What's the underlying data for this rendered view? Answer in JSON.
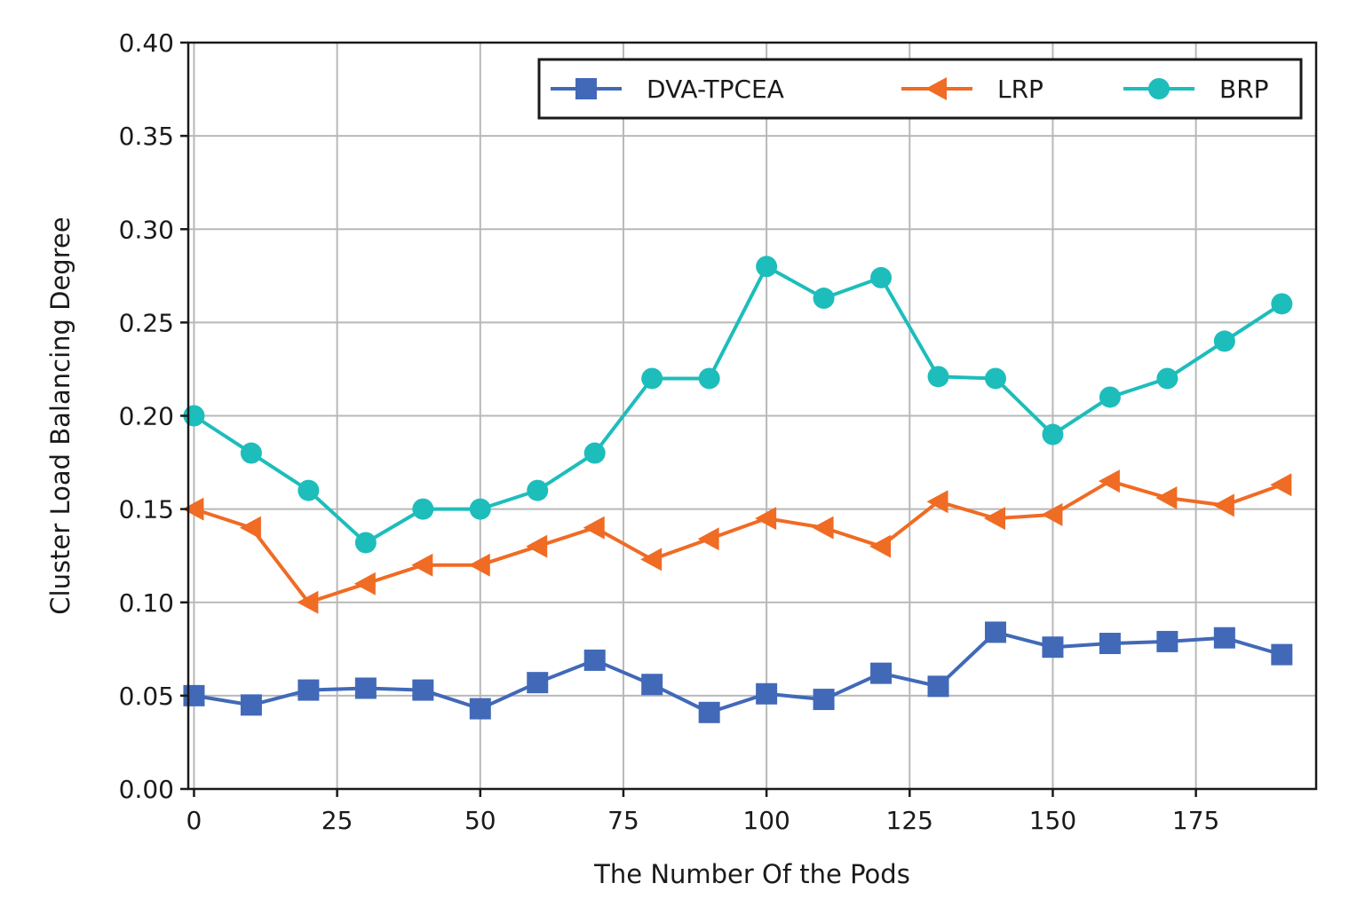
{
  "chart_data": {
    "type": "line",
    "title": "",
    "xlabel": "The Number Of the Pods",
    "ylabel": "Cluster Load Balancing Degree",
    "xlim": [
      -1,
      196
    ],
    "ylim": [
      0.0,
      0.4
    ],
    "xticks": [
      0,
      25,
      50,
      75,
      100,
      125,
      150,
      175
    ],
    "xtick_labels": [
      "0",
      "25",
      "50",
      "75",
      "100",
      "125",
      "150",
      "175"
    ],
    "yticks": [
      0.0,
      0.05,
      0.1,
      0.15,
      0.2,
      0.25,
      0.3,
      0.35,
      0.4
    ],
    "ytick_labels": [
      "0.00",
      "0.05",
      "0.10",
      "0.15",
      "0.20",
      "0.25",
      "0.30",
      "0.35",
      "0.40"
    ],
    "grid": true,
    "legend_position": "top-right",
    "x": [
      0,
      10,
      20,
      30,
      40,
      50,
      60,
      70,
      80,
      90,
      100,
      110,
      120,
      130,
      140,
      150,
      160,
      170,
      180,
      190
    ],
    "series": [
      {
        "name": "DVA-TPCEA",
        "color": "#4169b8",
        "marker": "square",
        "values": [
          0.05,
          0.045,
          0.053,
          0.054,
          0.053,
          0.043,
          0.057,
          0.069,
          0.056,
          0.041,
          0.051,
          0.048,
          0.062,
          0.055,
          0.084,
          0.076,
          0.078,
          0.079,
          0.081,
          0.072
        ]
      },
      {
        "name": "LRP",
        "color": "#f06b24",
        "marker": "triangle-left",
        "values": [
          0.15,
          0.14,
          0.1,
          0.11,
          0.12,
          0.12,
          0.13,
          0.14,
          0.123,
          0.134,
          0.145,
          0.14,
          0.13,
          0.154,
          0.145,
          0.147,
          0.165,
          0.156,
          0.152,
          0.163
        ]
      },
      {
        "name": "BRP",
        "color": "#1dbdbb",
        "marker": "circle",
        "values": [
          0.2,
          0.18,
          0.16,
          0.132,
          0.15,
          0.15,
          0.16,
          0.18,
          0.22,
          0.22,
          0.28,
          0.263,
          0.274,
          0.221,
          0.22,
          0.19,
          0.21,
          0.22,
          0.24,
          0.26
        ]
      }
    ]
  }
}
